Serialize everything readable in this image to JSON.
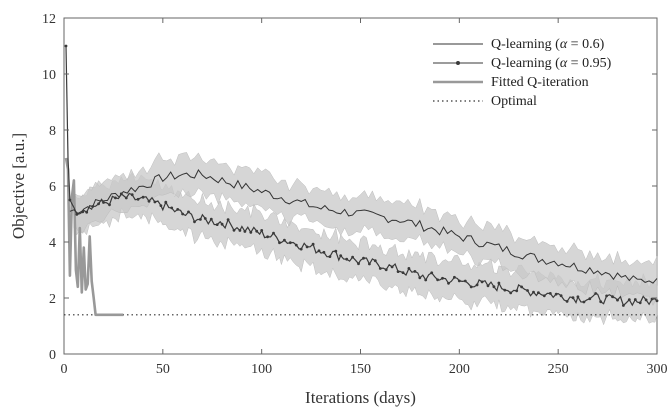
{
  "chart_data": {
    "type": "line",
    "xlabel": "Iterations (days)",
    "ylabel": "Objective [a.u.]",
    "xlim": [
      0,
      300
    ],
    "ylim": [
      0,
      12
    ],
    "xticks": [
      0,
      50,
      100,
      150,
      200,
      250,
      300
    ],
    "yticks": [
      0,
      2,
      4,
      6,
      8,
      10,
      12
    ],
    "grid": false,
    "legend_position": "top-right",
    "optimal_value": 1.4,
    "series": [
      {
        "name": "Q-learning (α = 0.6)",
        "legend_prefix": "Q-learning (",
        "legend_alpha": "α",
        "legend_suffix": " = 0.6)",
        "style": "thin-line-with-band",
        "color": "#333333",
        "band_color": "#c8c8c8",
        "band_halfwidth": 0.45,
        "x": [
          3,
          10,
          20,
          30,
          40,
          50,
          60,
          70,
          80,
          90,
          100,
          110,
          120,
          130,
          140,
          150,
          160,
          170,
          180,
          190,
          200,
          210,
          220,
          230,
          240,
          250,
          260,
          270,
          280,
          290,
          300
        ],
        "y": [
          5.1,
          5.2,
          5.5,
          5.8,
          6.0,
          6.3,
          6.4,
          6.4,
          6.2,
          6.0,
          5.8,
          5.6,
          5.4,
          5.2,
          5.1,
          5.0,
          4.9,
          4.8,
          4.6,
          4.4,
          4.2,
          4.0,
          3.8,
          3.6,
          3.4,
          3.3,
          3.1,
          3.0,
          2.8,
          2.6,
          2.7
        ]
      },
      {
        "name": "Q-learning (α = 0.95)",
        "legend_prefix": "Q-learning (",
        "legend_alpha": "α",
        "legend_suffix": " = 0.95)",
        "style": "line-with-markers-and-band",
        "color": "#3a3a3a",
        "band_color": "#c8c8c8",
        "band_halfwidth": 0.5,
        "x": [
          1,
          2,
          3,
          5,
          10,
          20,
          30,
          40,
          50,
          60,
          70,
          80,
          90,
          100,
          110,
          120,
          130,
          140,
          150,
          160,
          170,
          180,
          190,
          200,
          210,
          220,
          230,
          240,
          250,
          260,
          270,
          280,
          290,
          300
        ],
        "y": [
          11.0,
          7.0,
          5.5,
          5.1,
          5.2,
          5.4,
          5.6,
          5.5,
          5.3,
          5.0,
          4.8,
          4.7,
          4.5,
          4.3,
          4.1,
          3.9,
          3.7,
          3.5,
          3.3,
          3.2,
          3.0,
          2.8,
          2.7,
          2.6,
          2.5,
          2.4,
          2.3,
          2.2,
          2.1,
          2.0,
          2.0,
          1.9,
          1.9,
          1.9
        ]
      },
      {
        "name": "Fitted Q-iteration",
        "style": "thick-gray-line",
        "color": "#999999",
        "x": [
          1,
          2,
          3,
          4,
          5,
          6,
          7,
          8,
          9,
          10,
          11,
          12,
          13,
          14,
          15,
          16,
          20,
          25,
          30
        ],
        "y": [
          7.0,
          6.6,
          2.8,
          5.6,
          6.2,
          3.0,
          2.4,
          4.5,
          2.2,
          3.8,
          2.3,
          2.5,
          4.2,
          2.6,
          2.0,
          1.4,
          1.4,
          1.4,
          1.4
        ]
      },
      {
        "name": "Optimal",
        "style": "dotted",
        "color": "#333333",
        "x": [
          0,
          300
        ],
        "y": [
          1.4,
          1.4
        ]
      }
    ]
  }
}
